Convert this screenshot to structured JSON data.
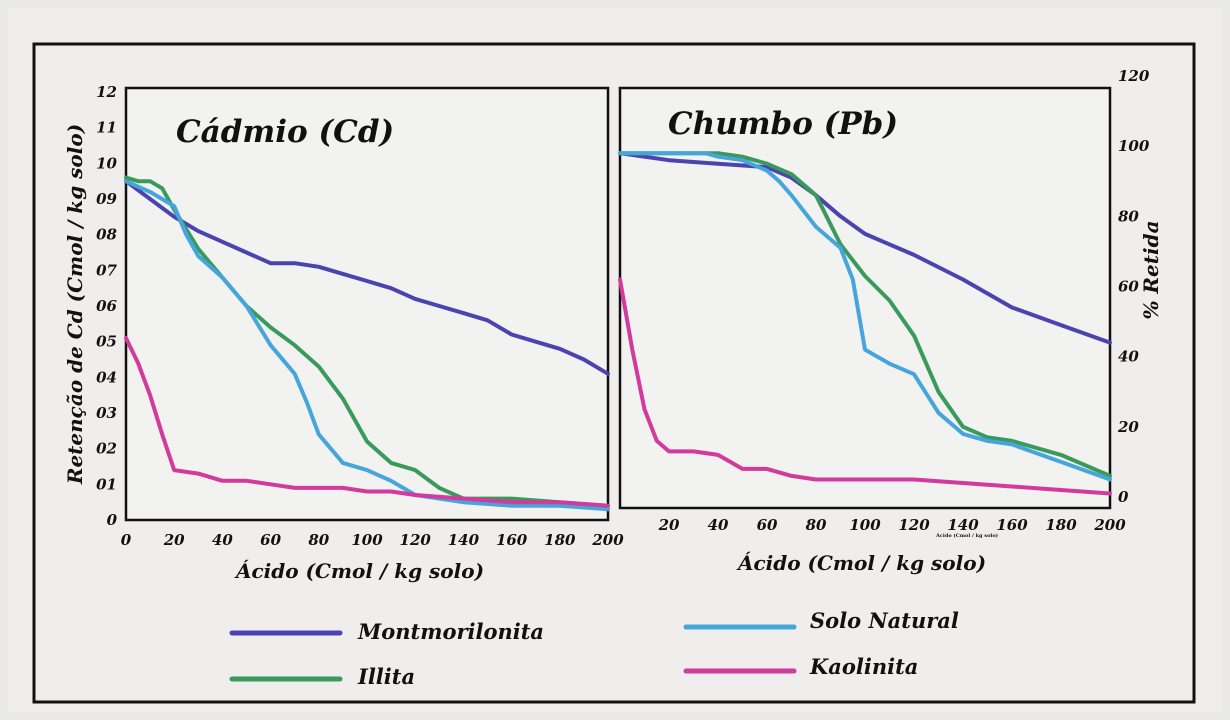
{
  "colors": {
    "Montmorilonita": "#4a43b0",
    "Illita": "#3a9a5c",
    "Solo Natural": "#46a6dc",
    "Kaolinita": "#d23a9c"
  },
  "axes": {
    "left_ylabel": "Retenção de Cd (Cmol / kg solo)",
    "right_ylabel": "% Retida",
    "left_xlabel": "Ácido (Cmol / kg solo)",
    "right_xlabel": "Ácido (Cmol / kg solo)",
    "left_yticks": [
      "0",
      "01",
      "02",
      "03",
      "04",
      "05",
      "06",
      "07",
      "08",
      "09",
      "10",
      "11",
      "12"
    ],
    "right_yticks": [
      "0",
      "20",
      "40",
      "60",
      "80",
      "100",
      "120"
    ],
    "left_xticks": [
      "0",
      "20",
      "40",
      "60",
      "80",
      "100",
      "120",
      "140",
      "160",
      "180",
      "200"
    ],
    "right_xticks": [
      "20",
      "40",
      "60",
      "80",
      "100",
      "120",
      "140",
      "160",
      "180",
      "200"
    ],
    "tiny_note": "Ácido (Cmol / kg solo)"
  },
  "legend": {
    "items": [
      "Montmorilonita",
      "Illita",
      "Solo Natural",
      "Kaolinita"
    ]
  },
  "chart_data": [
    {
      "type": "line",
      "title": "Cádmio (Cd)",
      "xlabel": "Ácido (Cmol / kg solo)",
      "ylabel": "Retenção de Cd (Cmol / kg solo)",
      "xlim": [
        0,
        200
      ],
      "ylim": [
        0,
        12
      ],
      "grid": false,
      "series": [
        {
          "name": "Montmorilonita",
          "x": [
            0,
            10,
            20,
            30,
            40,
            50,
            60,
            70,
            80,
            90,
            100,
            110,
            120,
            130,
            140,
            150,
            160,
            170,
            180,
            190,
            200
          ],
          "y": [
            9.5,
            9.0,
            8.5,
            8.1,
            7.8,
            7.5,
            7.2,
            7.2,
            7.1,
            6.9,
            6.7,
            6.5,
            6.2,
            6.0,
            5.8,
            5.6,
            5.2,
            5.0,
            4.8,
            4.5,
            4.1
          ]
        },
        {
          "name": "Illita",
          "x": [
            0,
            5,
            10,
            15,
            20,
            30,
            40,
            50,
            60,
            70,
            80,
            90,
            100,
            110,
            120,
            130,
            140,
            160,
            180,
            200
          ],
          "y": [
            9.6,
            9.5,
            9.5,
            9.3,
            8.7,
            7.6,
            6.8,
            6.0,
            5.4,
            4.9,
            4.3,
            3.4,
            2.2,
            1.6,
            1.4,
            0.9,
            0.6,
            0.6,
            0.5,
            0.4
          ]
        },
        {
          "name": "Solo Natural",
          "x": [
            0,
            10,
            20,
            25,
            30,
            40,
            50,
            60,
            70,
            75,
            80,
            90,
            100,
            110,
            120,
            140,
            160,
            180,
            200
          ],
          "y": [
            9.5,
            9.2,
            8.8,
            8.0,
            7.4,
            6.8,
            6.0,
            4.9,
            4.1,
            3.3,
            2.4,
            1.6,
            1.4,
            1.1,
            0.7,
            0.5,
            0.4,
            0.4,
            0.3
          ]
        },
        {
          "name": "Kaolinita",
          "x": [
            0,
            5,
            10,
            15,
            20,
            30,
            40,
            50,
            60,
            70,
            80,
            90,
            100,
            110,
            120,
            140,
            160,
            180,
            200
          ],
          "y": [
            5.1,
            4.4,
            3.5,
            2.4,
            1.4,
            1.3,
            1.1,
            1.1,
            1.0,
            0.9,
            0.9,
            0.9,
            0.8,
            0.8,
            0.7,
            0.6,
            0.5,
            0.5,
            0.4
          ]
        }
      ]
    },
    {
      "type": "line",
      "title": "Chumbo (Pb)",
      "xlabel": "Ácido (Cmol / kg solo)",
      "ylabel": "% Retida",
      "xlim": [
        0,
        200
      ],
      "ylim": [
        0,
        120
      ],
      "grid": false,
      "series": [
        {
          "name": "Montmorilonita",
          "x": [
            0,
            20,
            40,
            60,
            70,
            80,
            90,
            100,
            120,
            140,
            160,
            180,
            200
          ],
          "y": [
            98,
            96,
            95,
            94,
            91,
            86,
            80,
            75,
            69,
            62,
            54,
            49,
            44
          ]
        },
        {
          "name": "Illita",
          "x": [
            0,
            20,
            40,
            50,
            60,
            70,
            80,
            90,
            100,
            110,
            120,
            130,
            140,
            150,
            160,
            180,
            200
          ],
          "y": [
            98,
            98,
            98,
            97,
            95,
            92,
            86,
            72,
            63,
            56,
            46,
            30,
            20,
            17,
            16,
            12,
            6
          ]
        },
        {
          "name": "Solo Natural",
          "x": [
            0,
            20,
            35,
            40,
            50,
            60,
            65,
            70,
            80,
            90,
            95,
            100,
            110,
            120,
            130,
            140,
            150,
            160,
            180,
            200
          ],
          "y": [
            98,
            98,
            98,
            97,
            96,
            93,
            90,
            86,
            77,
            71,
            62,
            42,
            38,
            35,
            24,
            18,
            16,
            15,
            10,
            5
          ]
        },
        {
          "name": "Kaolinita",
          "x": [
            0,
            5,
            10,
            15,
            20,
            30,
            40,
            45,
            50,
            60,
            70,
            80,
            100,
            120,
            140,
            160,
            180,
            200
          ],
          "y": [
            62,
            42,
            25,
            16,
            13,
            13,
            12,
            10,
            8,
            8,
            6,
            5,
            5,
            5,
            4,
            3,
            2,
            1
          ]
        }
      ]
    }
  ]
}
